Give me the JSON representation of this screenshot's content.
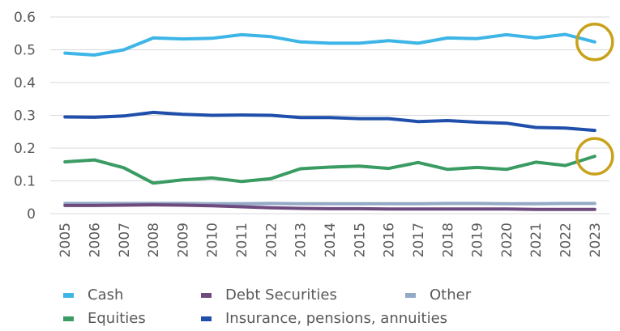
{
  "chart_data": {
    "type": "line",
    "title": "",
    "xlabel": "",
    "ylabel": "",
    "ylim": [
      0,
      0.6
    ],
    "yticks": [
      "0",
      "0.1",
      "0.2",
      "0.3",
      "0.4",
      "0.5",
      "0.6"
    ],
    "grid": true,
    "legend_position": "bottom",
    "categories": [
      "2005",
      "2006",
      "2007",
      "2008",
      "2009",
      "2010",
      "2011",
      "2012",
      "2013",
      "2014",
      "2015",
      "2016",
      "2017",
      "2018",
      "2019",
      "2020",
      "2021",
      "2022",
      "2023"
    ],
    "series": [
      {
        "name": "Cash",
        "color": "#3DB5E6",
        "values": [
          0.49,
          0.484,
          0.5,
          0.536,
          0.533,
          0.535,
          0.546,
          0.54,
          0.524,
          0.52,
          0.52,
          0.528,
          0.52,
          0.536,
          0.534,
          0.546,
          0.536,
          0.547,
          0.524
        ]
      },
      {
        "name": "Debt Securities",
        "color": "#6E4A7E",
        "values": [
          0.025,
          0.025,
          0.026,
          0.027,
          0.026,
          0.024,
          0.021,
          0.018,
          0.016,
          0.015,
          0.015,
          0.014,
          0.014,
          0.014,
          0.014,
          0.014,
          0.013,
          0.013,
          0.013
        ]
      },
      {
        "name": "Other",
        "color": "#94A9C5",
        "values": [
          0.031,
          0.031,
          0.031,
          0.031,
          0.031,
          0.03,
          0.03,
          0.031,
          0.03,
          0.03,
          0.03,
          0.03,
          0.03,
          0.031,
          0.031,
          0.03,
          0.03,
          0.031,
          0.031
        ]
      },
      {
        "name": "Equities",
        "color": "#3A9B63",
        "values": [
          0.158,
          0.164,
          0.14,
          0.093,
          0.103,
          0.109,
          0.098,
          0.107,
          0.137,
          0.142,
          0.145,
          0.138,
          0.156,
          0.135,
          0.141,
          0.135,
          0.157,
          0.147,
          0.175
        ]
      },
      {
        "name": "Insurance, pensions, annuities",
        "color": "#1F4FAB",
        "values": [
          0.295,
          0.294,
          0.298,
          0.309,
          0.303,
          0.3,
          0.301,
          0.3,
          0.293,
          0.293,
          0.29,
          0.29,
          0.281,
          0.284,
          0.279,
          0.276,
          0.263,
          0.261,
          0.254
        ]
      }
    ],
    "highlights": [
      {
        "series": "Cash",
        "category": "2023",
        "color": "#C9A21B"
      },
      {
        "series": "Equities",
        "category": "2023",
        "color": "#C9A21B"
      }
    ]
  }
}
